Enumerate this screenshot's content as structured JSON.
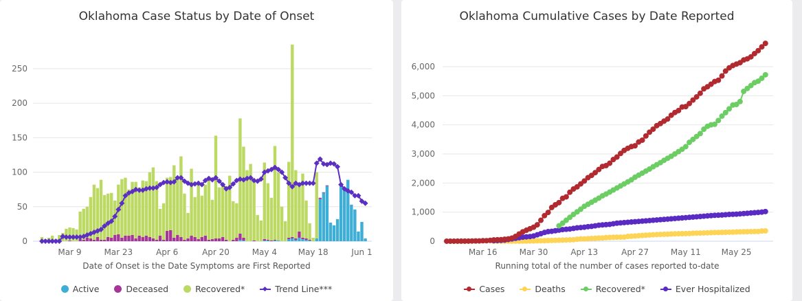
{
  "chart_data": [
    {
      "type": "bar",
      "stacked": true,
      "title": "Oklahoma Case Status by Date of Onset",
      "xlabel": "Date of Onset is the Date Symptoms are First Reported",
      "ylabel": "",
      "ylim": [
        0,
        290
      ],
      "yticks": [
        "0",
        "50",
        "100",
        "150",
        "200",
        "250"
      ],
      "ytick_values": [
        0,
        50,
        100,
        150,
        200,
        250
      ],
      "grid": true,
      "legend_position": "bottom",
      "x_start": "Mar 1",
      "x_end": "Jun 2",
      "xticks": [
        {
          "label": "Mar 9",
          "index": 8
        },
        {
          "label": "Mar 23",
          "index": 22
        },
        {
          "label": "Apr 6",
          "index": 36
        },
        {
          "label": "Apr 20",
          "index": 50
        },
        {
          "label": "May 4",
          "index": 64
        },
        {
          "label": "May 18",
          "index": 78
        },
        {
          "label": "Jun 1",
          "index": 92
        }
      ],
      "totals": [
        6,
        3,
        5,
        8,
        3,
        9,
        12,
        18,
        20,
        19,
        17,
        43,
        47,
        50,
        64,
        82,
        77,
        89,
        67,
        69,
        70,
        59,
        82,
        90,
        92,
        75,
        86,
        86,
        78,
        88,
        87,
        100,
        107,
        87,
        47,
        55,
        92,
        93,
        110,
        92,
        123,
        69,
        41,
        105,
        64,
        84,
        66,
        82,
        89,
        60,
        153,
        78,
        80,
        80,
        95,
        58,
        55,
        178,
        137,
        103,
        112,
        88,
        38,
        30,
        114,
        84,
        63,
        138,
        100,
        50,
        29,
        115,
        285,
        103,
        82,
        98,
        59,
        26,
        5,
        100,
        63,
        71,
        81,
        27,
        23,
        32,
        80,
        75,
        89,
        53,
        46,
        14,
        28,
        4
      ],
      "series": [
        {
          "name": "Active",
          "color": "#3eaed6",
          "values": [
            0,
            0,
            0,
            0,
            0,
            0,
            0,
            0,
            0,
            0,
            0,
            0,
            0,
            0,
            0,
            0,
            0,
            0,
            0,
            0,
            0,
            0,
            0,
            0,
            0,
            0,
            0,
            0,
            0,
            0,
            0,
            0,
            0,
            0,
            0,
            0,
            0,
            0,
            0,
            0,
            0,
            0,
            0,
            0,
            0,
            0,
            0,
            0,
            0,
            0,
            0,
            0,
            0,
            0,
            0,
            0,
            0,
            2,
            1,
            0,
            0,
            0,
            0,
            0,
            1,
            1,
            0,
            1,
            1,
            0,
            0,
            3,
            4,
            2,
            5,
            3,
            2,
            1,
            0,
            4,
            61,
            70,
            80,
            27,
            23,
            32,
            80,
            75,
            89,
            53,
            46,
            14,
            28,
            4
          ]
        },
        {
          "name": "Deceased",
          "color": "#a63598",
          "values": [
            0,
            0,
            0,
            0,
            0,
            0,
            0,
            0,
            1,
            0,
            0,
            3,
            2,
            5,
            4,
            2,
            6,
            2,
            2,
            6,
            5,
            9,
            10,
            5,
            8,
            8,
            9,
            4,
            8,
            6,
            8,
            6,
            4,
            2,
            8,
            2,
            15,
            16,
            5,
            9,
            6,
            2,
            4,
            8,
            6,
            3,
            6,
            8,
            2,
            3,
            4,
            4,
            6,
            2,
            0,
            2,
            5,
            9,
            4,
            0,
            0,
            1,
            0,
            0,
            2,
            1,
            1,
            1,
            0,
            0,
            0,
            2,
            2,
            2,
            9,
            2,
            2,
            1,
            0,
            0,
            2,
            1,
            1,
            0,
            0,
            0,
            0,
            0,
            0,
            0,
            0,
            0,
            0,
            0
          ]
        },
        {
          "name": "Recovered*",
          "color": "#bcd964",
          "values": [
            6,
            3,
            5,
            8,
            3,
            9,
            12,
            18,
            19,
            19,
            17,
            40,
            45,
            45,
            60,
            80,
            71,
            87,
            65,
            63,
            65,
            50,
            72,
            85,
            84,
            67,
            77,
            82,
            70,
            82,
            79,
            94,
            103,
            85,
            39,
            53,
            77,
            77,
            105,
            83,
            117,
            67,
            37,
            97,
            58,
            81,
            60,
            74,
            87,
            57,
            149,
            74,
            74,
            78,
            95,
            56,
            50,
            167,
            132,
            103,
            112,
            87,
            38,
            30,
            111,
            82,
            62,
            136,
            99,
            50,
            29,
            110,
            279,
            99,
            68,
            93,
            55,
            24,
            5,
            96,
            0,
            0,
            0,
            0,
            0,
            0,
            0,
            0,
            0,
            0,
            0,
            0,
            0,
            0
          ]
        },
        {
          "name": "Trend Line***",
          "color": "#5a2fc2",
          "type": "line",
          "values": [
            0,
            0,
            0,
            0,
            0,
            0,
            7,
            6,
            6,
            6,
            6,
            6,
            7,
            9,
            11,
            13,
            15,
            17,
            22,
            26,
            29,
            36,
            46,
            55,
            66,
            70,
            72,
            75,
            74,
            74,
            76,
            77,
            77,
            78,
            82,
            85,
            86,
            85,
            86,
            92,
            92,
            87,
            84,
            82,
            83,
            84,
            82,
            88,
            91,
            89,
            92,
            87,
            82,
            76,
            78,
            83,
            88,
            90,
            89,
            91,
            92,
            88,
            87,
            90,
            100,
            102,
            104,
            107,
            104,
            100,
            92,
            84,
            79,
            84,
            82,
            84,
            84,
            84,
            84,
            113,
            119,
            112,
            111,
            113,
            112,
            108,
            82,
            76,
            73,
            71,
            66,
            66,
            58,
            55
          ]
        }
      ]
    },
    {
      "type": "line",
      "title": "Oklahoma Cumulative Cases by Date Reported",
      "xlabel": "Running total of the number of cases reported to-date",
      "ylabel": "",
      "ylim": [
        0,
        6900
      ],
      "yticks": [
        "0",
        "1,000",
        "2,000",
        "3,000",
        "4,000",
        "5,000",
        "6,000"
      ],
      "ytick_values": [
        0,
        1000,
        2000,
        3000,
        4000,
        5000,
        6000
      ],
      "grid": true,
      "legend_position": "bottom",
      "x_start": "Mar 6",
      "x_end": "Jun 2",
      "xticks": [
        {
          "label": "Mar 16",
          "index": 10
        },
        {
          "label": "Mar 30",
          "index": 24
        },
        {
          "label": "Apr 13",
          "index": 38
        },
        {
          "label": "Apr 27",
          "index": 52
        },
        {
          "label": "May 11",
          "index": 66
        },
        {
          "label": "May 25",
          "index": 80
        }
      ],
      "series": [
        {
          "name": "Cases",
          "color": "#b02a30",
          "values": [
            1,
            1,
            1,
            2,
            2,
            3,
            4,
            7,
            9,
            10,
            17,
            19,
            29,
            44,
            49,
            53,
            67,
            81,
            106,
            164,
            248,
            322,
            377,
            429,
            481,
            565,
            719,
            879,
            988,
            1159,
            1252,
            1327,
            1472,
            1524,
            1684,
            1794,
            1868,
            1970,
            2069,
            2184,
            2263,
            2357,
            2465,
            2570,
            2599,
            2680,
            2807,
            2894,
            3017,
            3121,
            3193,
            3253,
            3280,
            3410,
            3473,
            3618,
            3748,
            3851,
            3972,
            4044,
            4127,
            4201,
            4330,
            4424,
            4490,
            4613,
            4627,
            4732,
            4852,
            4962,
            5086,
            5237,
            5310,
            5398,
            5489,
            5532,
            5680,
            5849,
            5960,
            6037,
            6090,
            6137,
            6229,
            6270,
            6338,
            6450,
            6550,
            6680,
            6800
          ]
        },
        {
          "name": "Deaths",
          "color": "#fed456",
          "values": [
            null,
            null,
            null,
            null,
            null,
            null,
            null,
            null,
            null,
            null,
            null,
            null,
            null,
            1,
            1,
            1,
            1,
            2,
            2,
            2,
            2,
            4,
            5,
            7,
            8,
            15,
            16,
            17,
            23,
            27,
            30,
            34,
            38,
            42,
            46,
            51,
            67,
            79,
            80,
            88,
            94,
            99,
            108,
            111,
            123,
            130,
            136,
            139,
            140,
            143,
            164,
            170,
            179,
            188,
            197,
            207,
            213,
            222,
            228,
            234,
            238,
            241,
            248,
            253,
            256,
            260,
            262,
            266,
            274,
            278,
            280,
            284,
            288,
            294,
            299,
            301,
            304,
            307,
            311,
            313,
            318,
            322,
            326,
            328,
            330,
            334,
            335,
            350,
            355
          ]
        },
        {
          "name": "Recovered*",
          "color": "#6ccd64",
          "values": [
            null,
            null,
            null,
            null,
            null,
            null,
            null,
            null,
            null,
            null,
            null,
            null,
            null,
            null,
            null,
            null,
            null,
            null,
            null,
            null,
            null,
            null,
            null,
            null,
            null,
            null,
            null,
            null,
            null,
            null,
            null,
            530,
            620,
            720,
            820,
            920,
            1010,
            1100,
            1200,
            1270,
            1340,
            1410,
            1480,
            1560,
            1620,
            1690,
            1760,
            1830,
            1900,
            1970,
            2040,
            2110,
            2200,
            2270,
            2340,
            2410,
            2480,
            2560,
            2630,
            2700,
            2780,
            2850,
            2920,
            3000,
            3080,
            3160,
            3250,
            3400,
            3500,
            3600,
            3700,
            3850,
            3950,
            4000,
            4020,
            4150,
            4300,
            4420,
            4550,
            4680,
            4700,
            4800,
            5150,
            5250,
            5350,
            5450,
            5500,
            5600,
            5720
          ]
        },
        {
          "name": "Ever Hospitalized",
          "color": "#5a2bc2",
          "values": [
            null,
            null,
            null,
            null,
            null,
            null,
            null,
            null,
            null,
            null,
            null,
            null,
            null,
            20,
            25,
            30,
            40,
            60,
            80,
            100,
            120,
            140,
            150,
            160,
            180,
            220,
            260,
            300,
            330,
            340,
            360,
            380,
            400,
            410,
            420,
            440,
            460,
            470,
            480,
            500,
            510,
            530,
            550,
            560,
            570,
            580,
            600,
            620,
            630,
            640,
            650,
            660,
            670,
            680,
            690,
            700,
            710,
            720,
            730,
            740,
            750,
            760,
            770,
            780,
            790,
            800,
            810,
            820,
            830,
            840,
            850,
            860,
            870,
            880,
            890,
            895,
            900,
            910,
            920,
            925,
            930,
            940,
            950,
            960,
            970,
            980,
            990,
            1000,
            1020
          ]
        }
      ]
    }
  ]
}
